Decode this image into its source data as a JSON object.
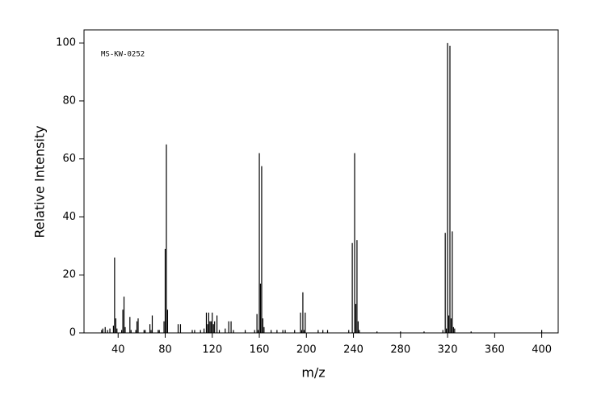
{
  "chart_data": {
    "type": "bar",
    "annotation": "MS-KW-0252",
    "xlabel": "m/z",
    "ylabel": "Relative Intensity",
    "color": "#000000",
    "x": [
      26,
      27,
      29,
      31,
      33,
      36,
      37,
      38,
      39,
      43,
      44,
      45,
      46,
      50,
      51,
      55,
      56,
      57,
      62,
      63,
      67,
      68,
      69,
      74,
      75,
      79,
      80,
      81,
      82,
      91,
      93,
      103,
      105,
      110,
      113,
      115,
      116,
      117,
      118,
      119,
      120,
      121,
      122,
      124,
      126,
      131,
      134,
      136,
      138,
      148,
      156,
      158,
      159,
      160,
      161,
      162,
      163,
      164,
      170,
      175,
      180,
      182,
      190,
      195,
      196,
      197,
      198,
      199,
      210,
      214,
      218,
      236,
      239,
      241,
      242,
      243,
      244,
      245,
      260,
      280,
      300,
      316,
      318,
      319,
      320,
      321,
      322,
      323,
      324,
      325,
      326,
      340,
      400
    ],
    "values": [
      1,
      1.5,
      2,
      1,
      1.5,
      2.5,
      26,
      5,
      1.5,
      1,
      8,
      12.5,
      2,
      5.5,
      1,
      1,
      4,
      5,
      1,
      1,
      3,
      1,
      6,
      1,
      1,
      4,
      29,
      65,
      8,
      3,
      3,
      1,
      1,
      1,
      1.5,
      7,
      3,
      7,
      4,
      4,
      7,
      3,
      4,
      6,
      1,
      1.5,
      4,
      4,
      1,
      1,
      1,
      6.5,
      1,
      62,
      17,
      57.5,
      5,
      2,
      1,
      1,
      1,
      1,
      1,
      7,
      1,
      14,
      1,
      7,
      1,
      1,
      1,
      1,
      31,
      62,
      10,
      32,
      4,
      1,
      0.5,
      0.5,
      0.5,
      1,
      34.5,
      1.5,
      100,
      6,
      99,
      5,
      35,
      2,
      1.5,
      0.5,
      1
    ],
    "xlim": [
      11,
      414
    ],
    "ylim": [
      0,
      104.5
    ],
    "xticks": [
      40,
      80,
      120,
      160,
      200,
      240,
      280,
      320,
      360,
      400
    ],
    "yticks": [
      0,
      20,
      40,
      60,
      80,
      100
    ]
  }
}
